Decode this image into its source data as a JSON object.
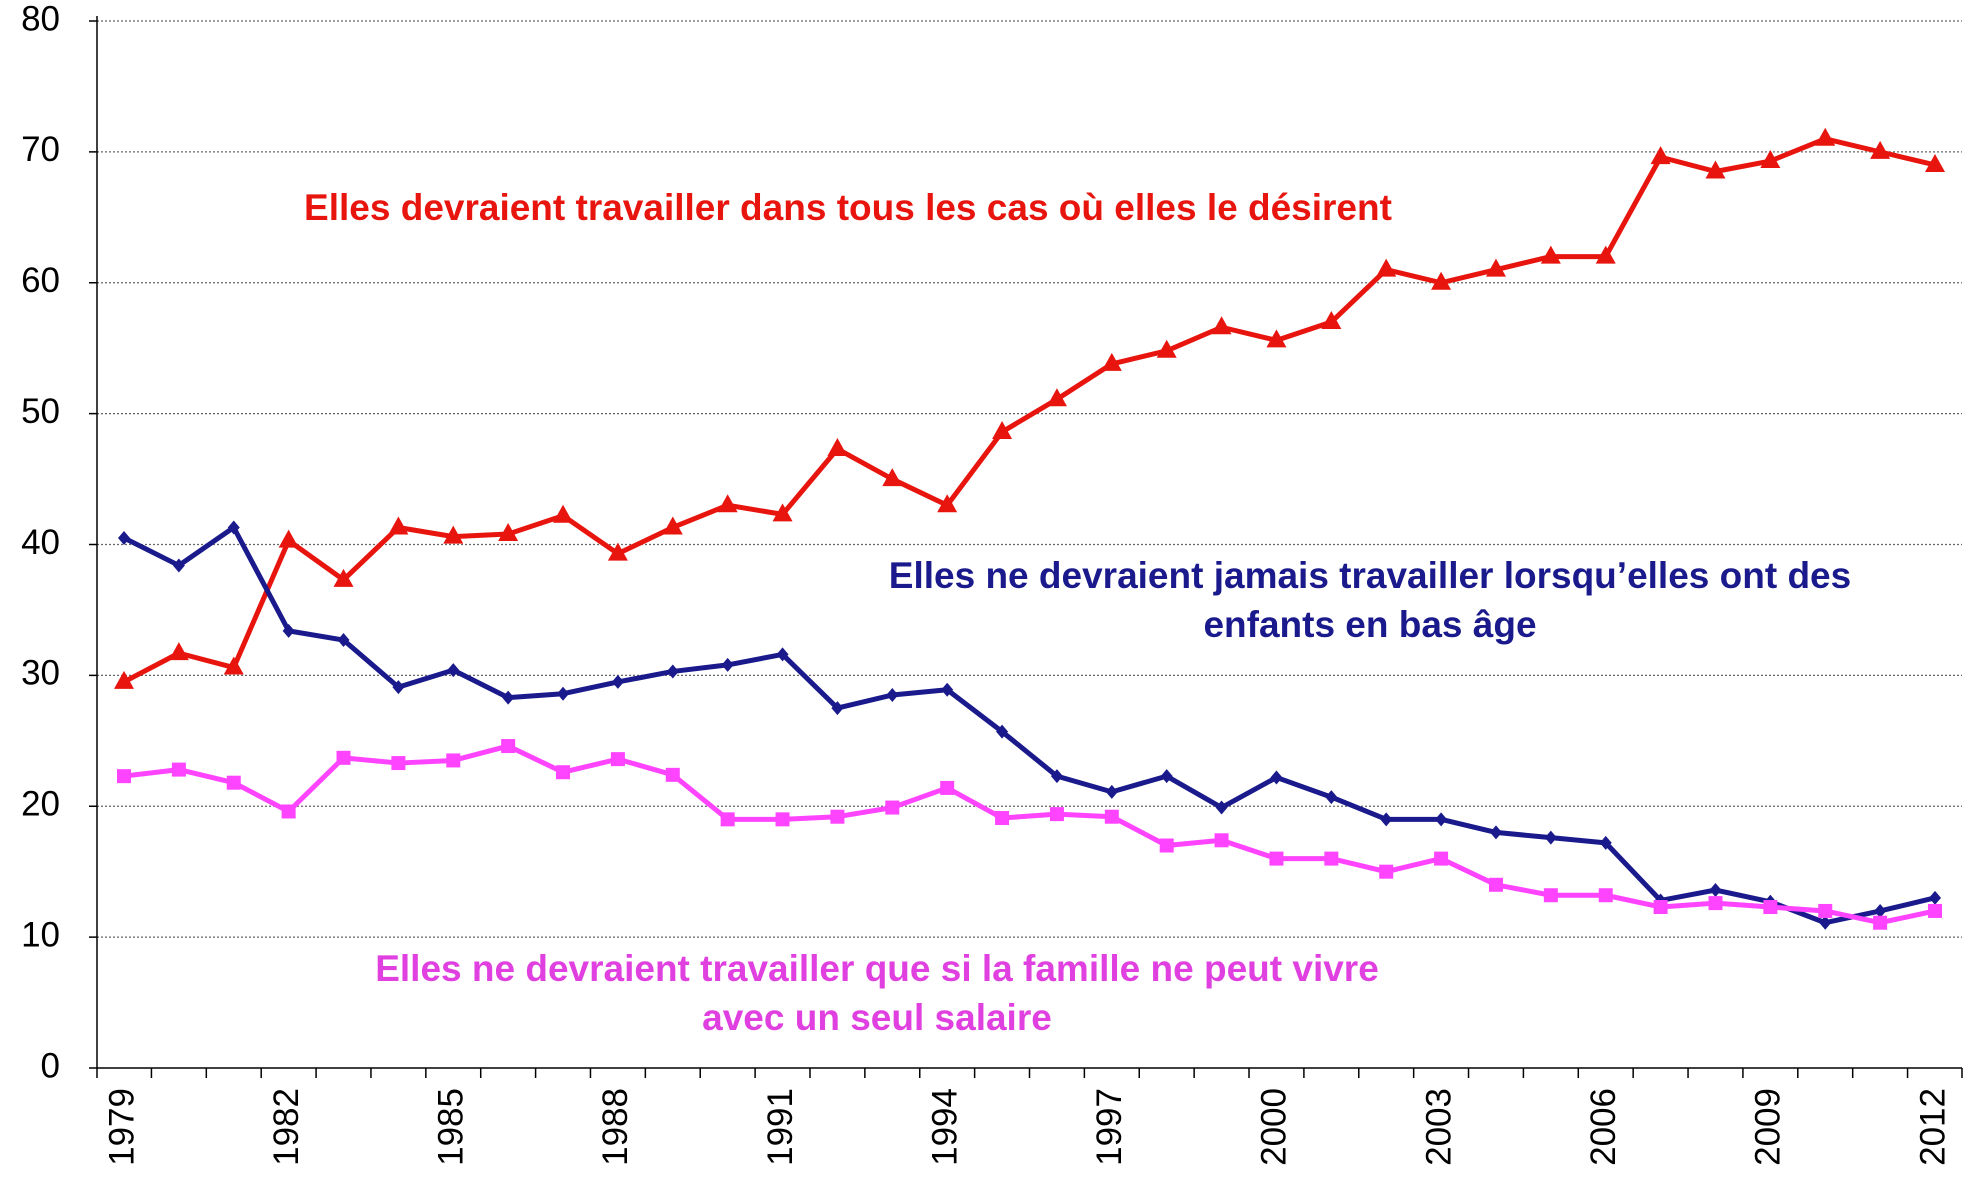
{
  "chart_data": {
    "type": "line",
    "categories": [
      "1979",
      null,
      null,
      "1982",
      null,
      null,
      "1985",
      null,
      null,
      "1988",
      null,
      null,
      "1991",
      null,
      null,
      "1994",
      null,
      null,
      "1997",
      null,
      null,
      "2000",
      null,
      null,
      "2003",
      null,
      null,
      "2006",
      null,
      null,
      "2009",
      null,
      null,
      "2012"
    ],
    "series": [
      {
        "color": "#e8150e",
        "marker": "triangle",
        "values": [
          29.5,
          31.7,
          30.6,
          40.3,
          37.3,
          41.3,
          40.6,
          40.8,
          42.2,
          39.3,
          41.3,
          43.0,
          42.3,
          47.3,
          45.0,
          43.0,
          48.6,
          51.1,
          53.8,
          54.8,
          56.6,
          55.6,
          57.0,
          61.0,
          60.0,
          61.0,
          62.0,
          62.0,
          69.6,
          68.5,
          69.3,
          71.0,
          70.0,
          69.0
        ]
      },
      {
        "color": "#1a1a8c",
        "marker": "diamond",
        "values": [
          40.5,
          38.4,
          41.3,
          33.4,
          32.7,
          29.1,
          30.4,
          28.3,
          28.6,
          29.5,
          30.3,
          30.8,
          31.6,
          27.5,
          28.5,
          28.9,
          25.7,
          22.3,
          21.1,
          22.3,
          19.9,
          22.2,
          20.7,
          19.0,
          19.0,
          18.0,
          17.6,
          17.2,
          12.8,
          13.6,
          12.7,
          11.1,
          12.0,
          13.0
        ]
      },
      {
        "color": "#ff44ff",
        "marker": "square",
        "values": [
          22.3,
          22.8,
          21.8,
          19.6,
          23.7,
          23.3,
          23.5,
          24.6,
          22.6,
          23.6,
          22.4,
          19.0,
          19.0,
          19.2,
          19.9,
          21.4,
          19.1,
          19.4,
          19.2,
          17.0,
          17.4,
          16.0,
          16.0,
          15.0,
          16.0,
          14.0,
          13.2,
          13.2,
          12.3,
          12.6,
          12.3,
          12.0,
          11.1,
          12.0
        ]
      }
    ],
    "annotations": [
      {
        "lines": [
          "Elles devraient travailler dans tous les cas où elles le désirent"
        ],
        "color": "#e8150e"
      },
      {
        "lines": [
          "Elles ne devraient jamais travailler lorsqu’elles ont des",
          "enfants en bas âge"
        ],
        "color": "#1a1a8c"
      },
      {
        "lines": [
          "Elles ne devraient travailler que si la famille ne peut vivre",
          "avec un seul salaire"
        ],
        "color": "#e040e0"
      }
    ],
    "ylim": [
      0,
      80
    ],
    "yticks": [
      0,
      10,
      20,
      30,
      40,
      50,
      60,
      70,
      80
    ],
    "grid": true
  }
}
